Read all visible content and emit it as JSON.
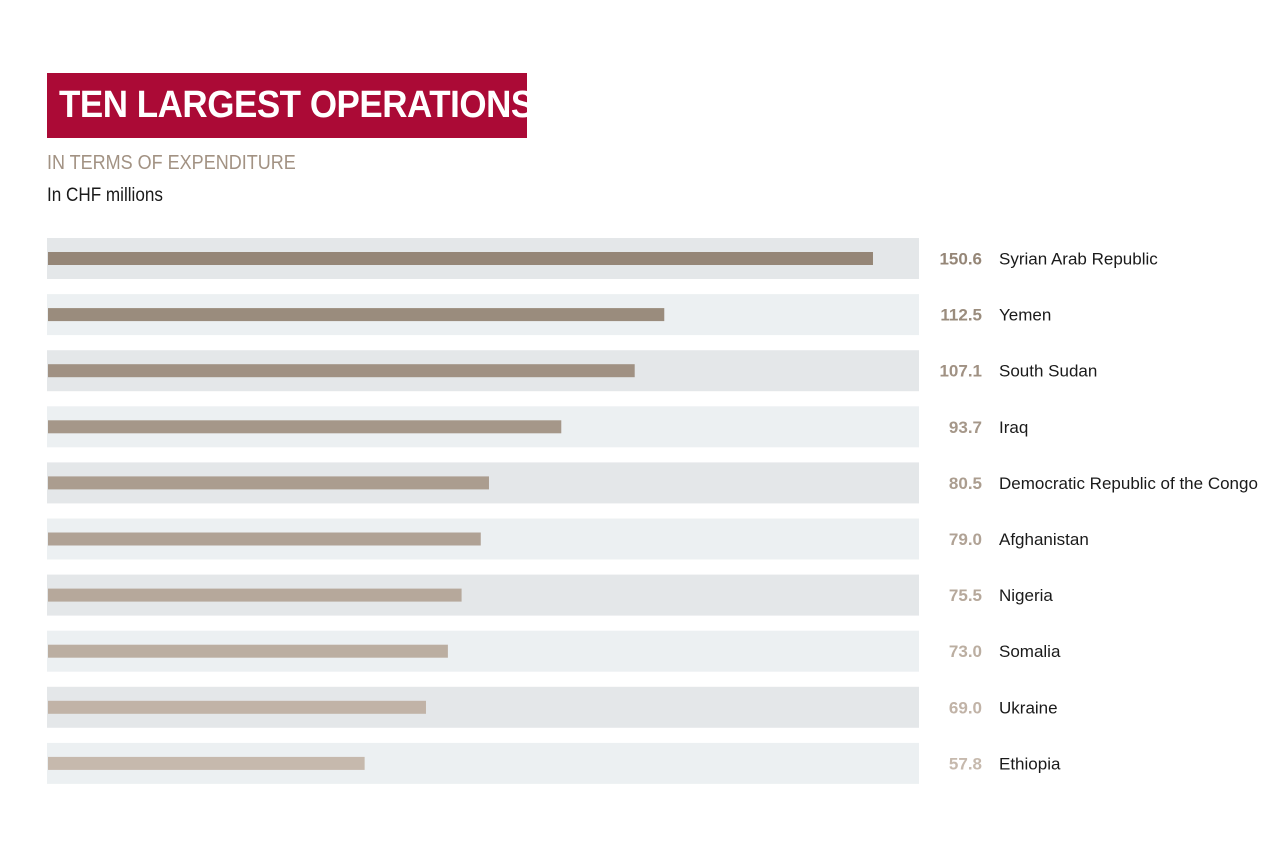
{
  "title": "TEN LARGEST OPERATIONS",
  "subtitle": "IN TERMS OF EXPENDITURE",
  "unit_note": "In CHF millions",
  "colors": {
    "title_background": "#ab0a36",
    "subtitle": "#a29283",
    "row_band_dark": "#e4e7e9",
    "row_band_light": "#ecf0f2",
    "bar_start": "#958677",
    "bar_end": "#c6b9ad"
  },
  "chart_data": {
    "type": "bar",
    "orientation": "horizontal",
    "categories": [
      "Syrian Arab Republic",
      "Yemen",
      "South Sudan",
      "Iraq",
      "Democratic Republic of the Congo",
      "Afghanistan",
      "Nigeria",
      "Somalia",
      "Ukraine",
      "Ethiopia"
    ],
    "values": [
      150.6,
      112.5,
      107.1,
      93.7,
      80.5,
      79.0,
      75.5,
      73.0,
      69.0,
      57.8
    ],
    "value_labels": [
      "150.6",
      "112.5",
      "107.1",
      "93.7",
      "80.5",
      "79.0",
      "75.5",
      "73.0",
      "69.0",
      "57.8"
    ],
    "xlim": [
      0,
      159
    ],
    "grid": false,
    "legend": "none"
  }
}
